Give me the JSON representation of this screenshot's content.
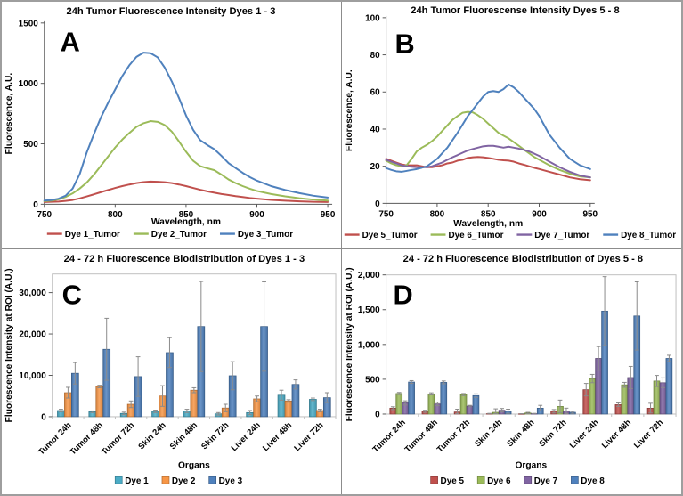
{
  "frame": {
    "border_color": "#9e9e9e",
    "divider_color": "#8c8c8c",
    "background": "#ffffff"
  },
  "palette": {
    "red": "#C0504D",
    "green": "#9BBB59",
    "blue": "#4F81BD",
    "purple": "#8064A2",
    "teal": "#4BACC6",
    "orange": "#F79646",
    "error_bar": "#8a8a8a",
    "axis": "#595959",
    "plot_border": "#bfbfbf",
    "text": "#000000"
  },
  "chart_data": [
    {
      "type": "line",
      "panel_label": "A",
      "title": "24h Tumor Fluorescence Intensity Dyes 1 - 3",
      "xlabel": "Wavelength, nm",
      "ylabel": "Fluorescence, A.U.",
      "xlim": [
        750,
        950
      ],
      "ylim": [
        0,
        1500
      ],
      "xticks": [
        {
          "v": 750,
          "label": "750"
        },
        {
          "v": 800,
          "label": "800"
        },
        {
          "v": 850,
          "label": "850"
        },
        {
          "v": 900,
          "label": "900"
        },
        {
          "v": 950,
          "label": "950"
        }
      ],
      "yticks": [
        {
          "v": 0,
          "label": "0"
        },
        {
          "v": 500,
          "label": "500"
        },
        {
          "v": 1000,
          "label": "1000"
        },
        {
          "v": 1500,
          "label": "1500"
        }
      ],
      "grid": false,
      "legend_position": "bottom",
      "x": [
        750,
        755,
        760,
        765,
        770,
        775,
        780,
        785,
        790,
        795,
        800,
        805,
        810,
        815,
        820,
        825,
        830,
        835,
        840,
        845,
        850,
        855,
        860,
        865,
        870,
        875,
        880,
        885,
        890,
        895,
        900,
        910,
        920,
        930,
        940,
        950
      ],
      "series": [
        {
          "name": "Dye 1_Tumor",
          "color": "#C0504D",
          "values": [
            18,
            20,
            22,
            28,
            35,
            48,
            65,
            82,
            100,
            118,
            135,
            150,
            163,
            175,
            183,
            188,
            186,
            182,
            175,
            163,
            150,
            135,
            120,
            107,
            96,
            85,
            76,
            67,
            60,
            52,
            46,
            36,
            29,
            24,
            20,
            18
          ]
        },
        {
          "name": "Dye 2_Tumor",
          "color": "#9BBB59",
          "values": [
            25,
            30,
            40,
            60,
            90,
            130,
            180,
            245,
            320,
            395,
            470,
            535,
            590,
            640,
            670,
            688,
            682,
            655,
            600,
            520,
            435,
            360,
            315,
            298,
            282,
            245,
            205,
            175,
            150,
            128,
            110,
            85,
            65,
            50,
            38,
            30
          ]
        },
        {
          "name": "Dye 3_Tumor",
          "color": "#4F81BD",
          "values": [
            30,
            35,
            45,
            70,
            130,
            250,
            430,
            580,
            720,
            840,
            950,
            1060,
            1150,
            1220,
            1255,
            1250,
            1215,
            1130,
            1015,
            880,
            735,
            615,
            530,
            490,
            455,
            400,
            340,
            300,
            260,
            225,
            195,
            150,
            118,
            92,
            70,
            55
          ]
        }
      ]
    },
    {
      "type": "line",
      "panel_label": "B",
      "title": "24h Tumor Fluorescense Intensity Dyes 5 - 8",
      "xlabel": "Wavelength, nm",
      "ylabel": "Fluorescence, A.U.",
      "xlim": [
        750,
        950
      ],
      "ylim": [
        0,
        100
      ],
      "xticks": [
        {
          "v": 750,
          "label": "750"
        },
        {
          "v": 800,
          "label": "800"
        },
        {
          "v": 850,
          "label": "850"
        },
        {
          "v": 900,
          "label": "900"
        },
        {
          "v": 950,
          "label": "950"
        }
      ],
      "yticks": [
        {
          "v": 0,
          "label": "0"
        },
        {
          "v": 20,
          "label": "20"
        },
        {
          "v": 40,
          "label": "40"
        },
        {
          "v": 60,
          "label": "60"
        },
        {
          "v": 80,
          "label": "80"
        },
        {
          "v": 100,
          "label": "100"
        }
      ],
      "grid": false,
      "legend_position": "bottom",
      "x": [
        750,
        755,
        760,
        765,
        770,
        775,
        780,
        785,
        790,
        795,
        800,
        805,
        810,
        815,
        820,
        825,
        830,
        835,
        840,
        845,
        850,
        855,
        860,
        865,
        870,
        875,
        880,
        885,
        890,
        895,
        900,
        910,
        920,
        930,
        940,
        950
      ],
      "series": [
        {
          "name": "Dye 5_Tumor",
          "color": "#C0504D",
          "values": [
            24,
            23,
            22,
            21,
            20.5,
            20.5,
            20.5,
            20,
            19.5,
            19.5,
            20,
            20.5,
            21.5,
            22,
            23,
            23.5,
            24.5,
            24.8,
            25,
            24.8,
            24.5,
            24,
            23.5,
            23.2,
            23,
            22.5,
            21.5,
            20.8,
            20,
            19.2,
            18.5,
            17,
            15.5,
            14,
            13,
            12.5
          ]
        },
        {
          "name": "Dye 6_Tumor",
          "color": "#9BBB59",
          "values": [
            23,
            21.5,
            20.5,
            20,
            20.5,
            24,
            28,
            30,
            31.5,
            33.5,
            36,
            39,
            42,
            45,
            47,
            48.8,
            49.3,
            49,
            47.5,
            45.5,
            43,
            40.5,
            38,
            36.5,
            35,
            33,
            31,
            29,
            27,
            25,
            23.5,
            20.5,
            18,
            16,
            14.5,
            14
          ]
        },
        {
          "name": "Dye 7_Tumor",
          "color": "#8064A2",
          "values": [
            23.5,
            22.5,
            21.5,
            20.5,
            20,
            19.7,
            19.5,
            19.5,
            19.5,
            20,
            21,
            22,
            23.5,
            24.8,
            26,
            27.3,
            28.5,
            29.3,
            30,
            30.7,
            31,
            31,
            30.5,
            30,
            30.5,
            30,
            29.5,
            28.8,
            28,
            26.8,
            25.5,
            22.5,
            19.5,
            17,
            15,
            14
          ]
        },
        {
          "name": "Dye 8_Tumor",
          "color": "#4F81BD",
          "values": [
            19,
            18,
            17.3,
            17,
            17.5,
            18,
            18.5,
            19.2,
            20,
            22,
            24,
            27,
            30,
            34,
            38,
            42.5,
            47,
            50.5,
            54,
            57.5,
            60,
            60.5,
            60,
            61.5,
            64,
            62.5,
            60,
            57,
            54,
            51,
            47,
            37,
            30,
            24,
            20.5,
            18.5
          ]
        }
      ]
    },
    {
      "type": "bar",
      "panel_label": "C",
      "title": "24 - 72 h Fluorescence Biodistribution of Dyes 1 - 3",
      "xlabel": "Organs",
      "ylabel": "Fluorescence Intensity at ROI  (A.U.)",
      "ylim": [
        0,
        34500
      ],
      "yticks": [
        {
          "v": 0,
          "label": "0"
        },
        {
          "v": 10000,
          "label": "10,000"
        },
        {
          "v": 20000,
          "label": "20,000"
        },
        {
          "v": 30000,
          "label": "30,000"
        }
      ],
      "grid": false,
      "legend_position": "bottom",
      "categories": [
        "Tumor 24h",
        "Tumor 48h",
        "Tumor 72h",
        "Skin 24h",
        "Skin 48h",
        "Skin 72h",
        "Liver 24h",
        "Liver 48h",
        "Liver 72h"
      ],
      "series": [
        {
          "name": "Dye 1",
          "color": "#4BACC6",
          "values": [
            1500,
            1200,
            800,
            1300,
            1400,
            700,
            1000,
            5200,
            4200
          ],
          "errors": [
            300,
            200,
            300,
            300,
            400,
            300,
            500,
            1200,
            300
          ]
        },
        {
          "name": "Dye 2",
          "color": "#F79646",
          "values": [
            5800,
            7300,
            3000,
            5000,
            6400,
            2100,
            4300,
            3800,
            1500
          ],
          "errors": [
            1300,
            300,
            800,
            2500,
            600,
            900,
            700,
            300,
            300
          ]
        },
        {
          "name": "Dye 3",
          "color": "#4F81BD",
          "values": [
            10500,
            16300,
            9700,
            15500,
            21800,
            9900,
            21800,
            7800,
            4600
          ],
          "errors": [
            2600,
            7500,
            4800,
            3600,
            10900,
            3400,
            10800,
            1100,
            1200
          ]
        }
      ]
    },
    {
      "type": "bar",
      "panel_label": "D",
      "title": "24 - 72 h Fluorescence Biodistribution of Dyes 5 - 8",
      "xlabel": "Organs",
      "ylabel": "Fluorescence Intensity at ROI (A.U.)",
      "ylim": [
        0,
        2000
      ],
      "yticks": [
        {
          "v": 0,
          "label": "0"
        },
        {
          "v": 500,
          "label": "500"
        },
        {
          "v": 1000,
          "label": "1,000"
        },
        {
          "v": 1500,
          "label": "1,500"
        },
        {
          "v": 2000,
          "label": "2,000"
        }
      ],
      "grid": false,
      "legend_position": "bottom",
      "categories": [
        "Tumor 24h",
        "Tumor 48h",
        "Tumor 72h",
        "Skin 24h",
        "Skin 48h",
        "Skin 72h",
        "Liver 24h",
        "Liver 48h",
        "Liver 72h"
      ],
      "series": [
        {
          "name": "Dye 5",
          "color": "#C0504D",
          "values": [
            85,
            40,
            30,
            5,
            3,
            40,
            350,
            135,
            85
          ],
          "errors": [
            20,
            15,
            40,
            5,
            3,
            25,
            90,
            25,
            70
          ]
        },
        {
          "name": "Dye 6",
          "color": "#9BBB59",
          "values": [
            295,
            290,
            280,
            25,
            15,
            110,
            510,
            420,
            475
          ],
          "errors": [
            15,
            15,
            15,
            50,
            10,
            90,
            60,
            35,
            80
          ]
        },
        {
          "name": "Dye 7",
          "color": "#8064A2",
          "values": [
            160,
            145,
            115,
            55,
            5,
            45,
            800,
            525,
            450
          ],
          "errors": [
            30,
            25,
            10,
            25,
            5,
            40,
            170,
            160,
            70
          ]
        },
        {
          "name": "Dye 8",
          "color": "#4F81BD",
          "values": [
            460,
            455,
            265,
            40,
            85,
            25,
            1480,
            1410,
            800
          ],
          "errors": [
            20,
            20,
            25,
            30,
            40,
            15,
            495,
            490,
            45
          ]
        }
      ]
    }
  ]
}
